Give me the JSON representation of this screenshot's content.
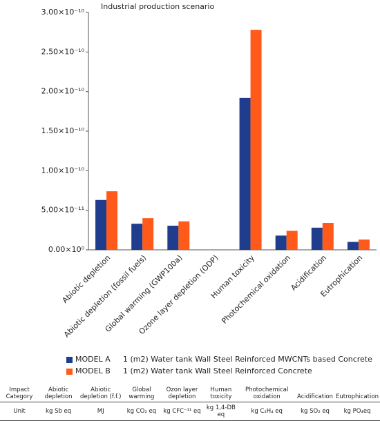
{
  "chart_data": {
    "type": "bar",
    "title": "Industrial production scenario",
    "categories": [
      "Abiotic depletion",
      "Abiotic depletion (fossil fuels)",
      "Global warming (GWP100a)",
      "Ozone layer depletion (ODP)",
      "Human toxicity",
      "Photochemical oxidation",
      "Acidification",
      "Eutrophication"
    ],
    "series": [
      {
        "name": "MODEL A",
        "label": "1 (m2) Water tank Wall Steel Reinforced MWCNTs based Concrete",
        "color": "#1f3d8c",
        "values": [
          6.3e-11,
          3.3e-11,
          3.05e-11,
          0,
          1.92e-10,
          1.8e-11,
          2.8e-11,
          1e-11
        ]
      },
      {
        "name": "MODEL B",
        "label": "1 (m2) Water tank Wall Steel Reinforced Concrete",
        "color": "#ff5a1a",
        "values": [
          7.4e-11,
          4e-11,
          3.6e-11,
          0,
          2.78e-10,
          2.4e-11,
          3.4e-11,
          1.3e-11
        ]
      }
    ],
    "ylim": [
      0,
      3e-10
    ],
    "yticks": [
      {
        "value": 0,
        "label": "0.00×10⁰"
      },
      {
        "value": 5e-11,
        "label": "5.00×10⁻¹¹"
      },
      {
        "value": 1e-10,
        "label": "1.00×10⁻¹⁰"
      },
      {
        "value": 1.5e-10,
        "label": "1.50×10⁻¹⁰"
      },
      {
        "value": 2e-10,
        "label": "2.00×10⁻¹⁰"
      },
      {
        "value": 2.5e-10,
        "label": "2.50×10⁻¹⁰"
      },
      {
        "value": 3e-10,
        "label": "3.00×10⁻¹⁰"
      }
    ],
    "grid": false
  },
  "table": {
    "header": [
      "Impact Category",
      "Abiotic depletion",
      "Abiotic depletion (f.f.)",
      "Global warming",
      "Ozon layer depletion",
      "Human toxicity",
      "Photochemical oxidation",
      "Acidification",
      "Eutrophication"
    ],
    "rows": [
      [
        "Unit",
        "kg Sb eq",
        "MJ",
        "kg CO₂ eq",
        "kg CFC⁻¹¹ eq",
        "kg 1,4-DB eq",
        "kg C₂H₄ eq",
        "kg SO₂ eq",
        "kg PO₄eq"
      ]
    ]
  }
}
